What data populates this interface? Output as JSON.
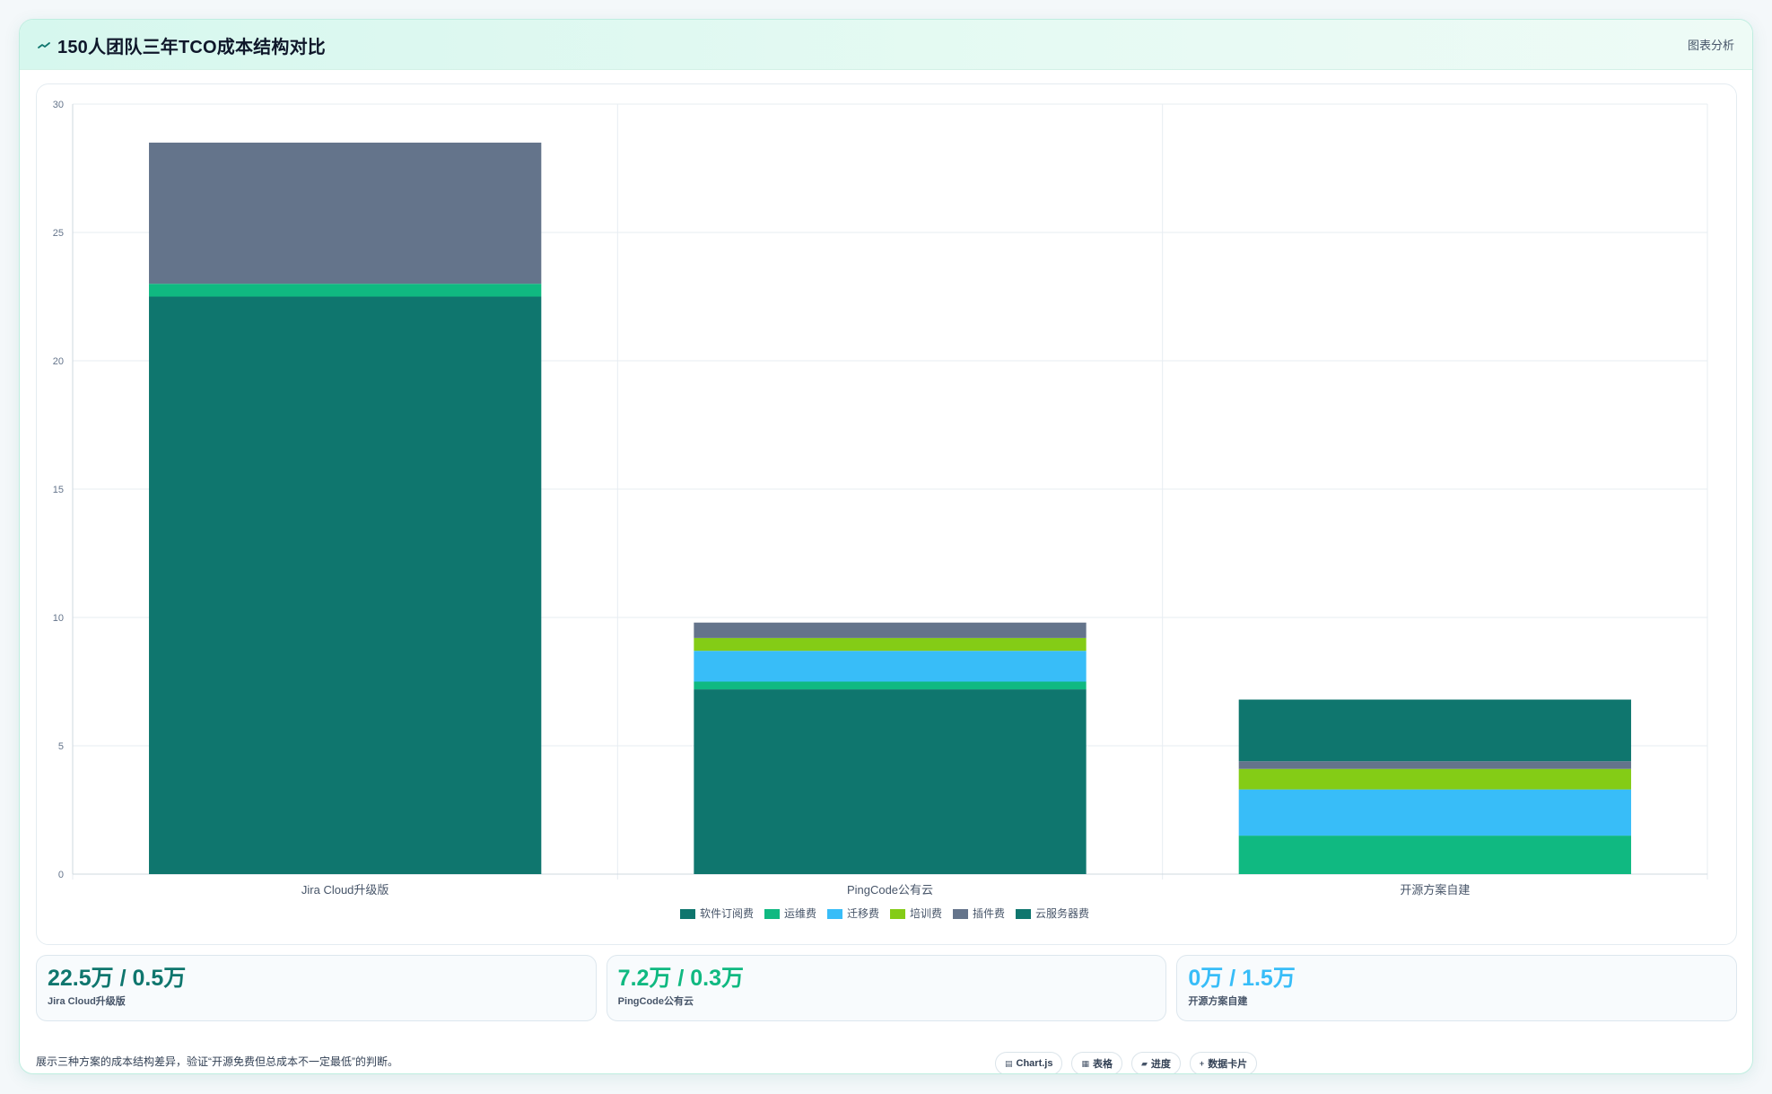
{
  "header": {
    "title": "150人团队三年TCO成本结构对比",
    "action_label": "图表分析"
  },
  "chart_data": {
    "type": "bar",
    "stacked": true,
    "categories": [
      "Jira Cloud升级版",
      "PingCode公有云",
      "开源方案自建"
    ],
    "series": [
      {
        "name": "软件订阅费",
        "color": "#0f766e",
        "values": [
          22.5,
          7.2,
          0
        ]
      },
      {
        "name": "运维费",
        "color": "#10b981",
        "values": [
          0.5,
          0.3,
          1.5
        ]
      },
      {
        "name": "迁移费",
        "color": "#38bdf8",
        "values": [
          0,
          1.2,
          1.8
        ]
      },
      {
        "name": "培训费",
        "color": "#84cc16",
        "values": [
          0,
          0.5,
          0.8
        ]
      },
      {
        "name": "插件费",
        "color": "#64748b",
        "values": [
          5.5,
          0.6,
          0.3
        ]
      },
      {
        "name": "云服务器费",
        "color": "#0f766e",
        "values": [
          0,
          0,
          2.4
        ]
      }
    ],
    "ylim": [
      0,
      30
    ],
    "yticks": [
      0,
      5,
      10,
      15,
      20,
      25,
      30
    ],
    "grid": true,
    "legend": "bottom"
  },
  "stats": [
    {
      "value": "22.5万 / 0.5万",
      "label": "Jira Cloud升级版",
      "color": "#0f766e"
    },
    {
      "value": "7.2万 / 0.3万",
      "label": "PingCode公有云",
      "color": "#10b981"
    },
    {
      "value": "0万 / 1.5万",
      "label": "开源方案自建",
      "color": "#38bdf8"
    }
  ],
  "footer": {
    "note": "展示三种方案的成本结构差异，验证“开源免费但总成本不一定最低”的判断。",
    "chips": [
      {
        "icon": "▤",
        "label": "Chart.js"
      },
      {
        "icon": "▦",
        "label": "表格"
      },
      {
        "icon": "▰",
        "label": "进度"
      },
      {
        "icon": "+",
        "label": "数据卡片"
      }
    ]
  }
}
